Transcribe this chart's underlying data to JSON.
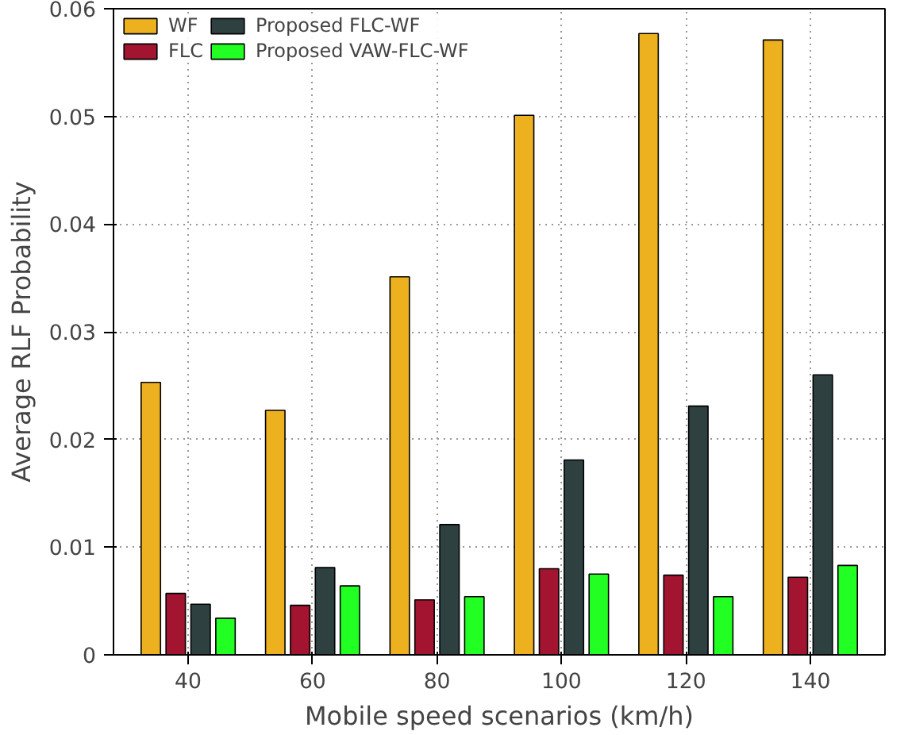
{
  "chart_data": {
    "type": "bar",
    "xlabel": "Mobile speed scenarios (km/h)",
    "ylabel": "Average RLF Probability",
    "categories": [
      "40",
      "60",
      "80",
      "100",
      "120",
      "140"
    ],
    "series": [
      {
        "name": "WF",
        "color": "#edb120",
        "values": [
          0.0253,
          0.0227,
          0.0351,
          0.0501,
          0.0577,
          0.0571
        ]
      },
      {
        "name": "FLC",
        "color": "#a2142f",
        "values": [
          0.0057,
          0.0046,
          0.0051,
          0.008,
          0.0074,
          0.0072
        ]
      },
      {
        "name": "Proposed FLC-WF",
        "color": "#2f4040",
        "values": [
          0.0047,
          0.0081,
          0.0121,
          0.0181,
          0.0231,
          0.026
        ]
      },
      {
        "name": "Proposed VAW-FLC-WF",
        "color": "#22ff22",
        "values": [
          0.0034,
          0.0064,
          0.0054,
          0.0075,
          0.0054,
          0.0083
        ]
      }
    ],
    "ylim": [
      0,
      0.06
    ],
    "yticks": [
      0,
      0.01,
      0.02,
      0.03,
      0.04,
      0.05,
      0.06
    ],
    "grid": true,
    "legend": "top left"
  }
}
